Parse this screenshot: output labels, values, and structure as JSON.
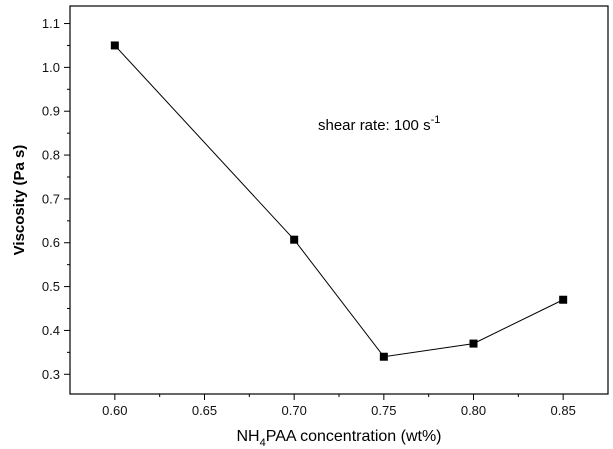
{
  "chart_data": {
    "type": "line",
    "title": "",
    "xlabel": {
      "prefix": "NH",
      "subscript": "4",
      "suffix": "PAA concentration (wt%)"
    },
    "ylabel": "Viscosity (Pa s)",
    "annotation": {
      "text": "shear rate: 100 s",
      "superscript": "-1"
    },
    "x": [
      0.6,
      0.7,
      0.75,
      0.8,
      0.85
    ],
    "series": [
      {
        "values": [
          1.05,
          0.607,
          0.34,
          0.37,
          0.47
        ],
        "marker": "square",
        "color": "#000000"
      }
    ],
    "xlim": [
      0.575,
      0.875
    ],
    "ylim": [
      0.255,
      1.14
    ],
    "x_ticks": [
      {
        "value": 0.6,
        "label": "0.60"
      },
      {
        "value": 0.65,
        "label": "0.65"
      },
      {
        "value": 0.7,
        "label": "0.70"
      },
      {
        "value": 0.75,
        "label": "0.75"
      },
      {
        "value": 0.8,
        "label": "0.80"
      },
      {
        "value": 0.85,
        "label": "0.85"
      }
    ],
    "y_ticks": [
      {
        "value": 0.3,
        "label": "0.3"
      },
      {
        "value": 0.4,
        "label": "0.4"
      },
      {
        "value": 0.5,
        "label": "0.5"
      },
      {
        "value": 0.6,
        "label": "0.6"
      },
      {
        "value": 0.7,
        "label": "0.7"
      },
      {
        "value": 0.8,
        "label": "0.8"
      },
      {
        "value": 0.9,
        "label": "0.9"
      },
      {
        "value": 1.0,
        "label": "1.0"
      },
      {
        "value": 1.1,
        "label": "1.1"
      }
    ],
    "grid": false,
    "legend": "none"
  }
}
